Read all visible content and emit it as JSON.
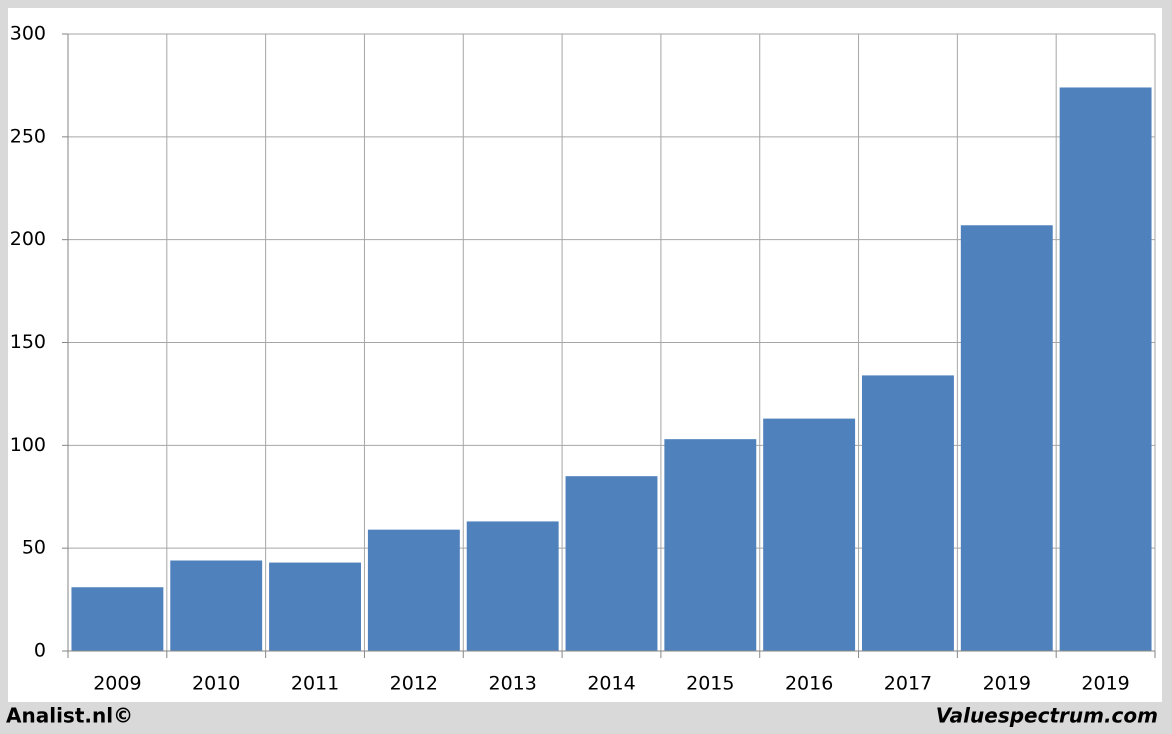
{
  "chart_data": {
    "type": "bar",
    "categories": [
      "2009",
      "2010",
      "2011",
      "2012",
      "2013",
      "2014",
      "2015",
      "2016",
      "2017",
      "2019",
      "2019"
    ],
    "values": [
      31,
      44,
      43,
      59,
      63,
      85,
      103,
      113,
      134,
      207,
      274
    ],
    "color": "#4f81bd",
    "ylim": [
      0,
      300
    ],
    "yticks": [
      0,
      50,
      100,
      150,
      200,
      250,
      300
    ],
    "grid": true
  },
  "footer": {
    "left": "Analist.nl©",
    "right": "Valuespectrum.com"
  }
}
